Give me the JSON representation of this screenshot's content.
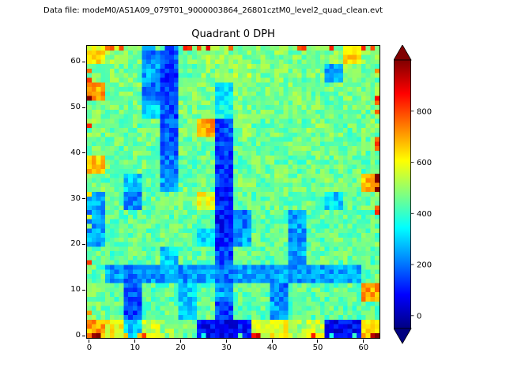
{
  "header": {
    "datafile_label": "Data file: modeM0/AS1A09_079T01_9000003864_26801cztM0_level2_quad_clean.evt"
  },
  "chart_data": {
    "type": "heatmap",
    "title": "Quadrant 0 DPH",
    "xlabel": "",
    "ylabel": "",
    "xlim": [
      -0.5,
      63.5
    ],
    "ylim": [
      -0.5,
      63.5
    ],
    "xticks": [
      0,
      10,
      20,
      30,
      40,
      50,
      60
    ],
    "yticks": [
      0,
      10,
      20,
      30,
      40,
      50,
      60
    ],
    "colormap": "jet",
    "vmin": -50,
    "vmax": 1000,
    "colorbar": {
      "ticks": [
        0,
        200,
        400,
        600,
        800
      ],
      "extend": "both",
      "arrow_low_color": "#000080",
      "arrow_high_color": "#800000"
    },
    "data_shape": [
      64,
      64
    ],
    "grid_shape": [
      16,
      16
    ],
    "grid_block_size": 4,
    "grid_note": "Estimated DPH counts downsampled to 16x16 blocks (each block = 4x4 detector pixels). Rows listed top-to-bottom (first row = detector y 60-63, last row = detector y 0-3). Background ~440-480; dark-blue streaks/blobs ~60-250; hot edge pixels ~600-700.",
    "grid_rows_top_to_bottom": [
      [
        620,
        500,
        480,
        200,
        160,
        470,
        520,
        480,
        470,
        460,
        480,
        470,
        460,
        480,
        650,
        480
      ],
      [
        480,
        470,
        460,
        250,
        140,
        460,
        480,
        470,
        520,
        460,
        470,
        460,
        480,
        250,
        480,
        460
      ],
      [
        700,
        460,
        470,
        200,
        130,
        470,
        460,
        300,
        480,
        470,
        460,
        470,
        450,
        460,
        470,
        480
      ],
      [
        480,
        460,
        470,
        300,
        150,
        470,
        460,
        350,
        470,
        460,
        450,
        470,
        460,
        450,
        470,
        460
      ],
      [
        470,
        460,
        450,
        460,
        180,
        460,
        700,
        150,
        480,
        450,
        460,
        450,
        470,
        460,
        450,
        470
      ],
      [
        460,
        450,
        460,
        450,
        170,
        460,
        450,
        140,
        460,
        450,
        440,
        460,
        450,
        460,
        440,
        450
      ],
      [
        650,
        460,
        450,
        460,
        200,
        450,
        460,
        130,
        450,
        460,
        450,
        440,
        460,
        450,
        460,
        440
      ],
      [
        460,
        450,
        300,
        450,
        250,
        460,
        450,
        120,
        460,
        450,
        460,
        450,
        440,
        460,
        450,
        680
      ],
      [
        250,
        440,
        200,
        450,
        440,
        450,
        600,
        110,
        450,
        440,
        450,
        440,
        450,
        300,
        440,
        450
      ],
      [
        240,
        450,
        440,
        450,
        440,
        450,
        440,
        100,
        200,
        450,
        440,
        250,
        450,
        440,
        450,
        440
      ],
      [
        250,
        440,
        450,
        440,
        450,
        440,
        300,
        110,
        250,
        440,
        450,
        240,
        440,
        450,
        440,
        450
      ],
      [
        450,
        440,
        440,
        450,
        300,
        450,
        440,
        150,
        440,
        450,
        440,
        260,
        450,
        440,
        450,
        440
      ],
      [
        440,
        250,
        200,
        240,
        250,
        240,
        250,
        200,
        250,
        240,
        250,
        230,
        250,
        240,
        250,
        440
      ],
      [
        450,
        440,
        160,
        440,
        440,
        300,
        440,
        250,
        440,
        450,
        200,
        440,
        450,
        440,
        450,
        700
      ],
      [
        460,
        450,
        150,
        440,
        450,
        300,
        450,
        150,
        440,
        440,
        250,
        440,
        440,
        450,
        440,
        450
      ],
      [
        700,
        600,
        300,
        550,
        500,
        450,
        80,
        60,
        90,
        550,
        600,
        500,
        550,
        70,
        80,
        650
      ]
    ]
  }
}
